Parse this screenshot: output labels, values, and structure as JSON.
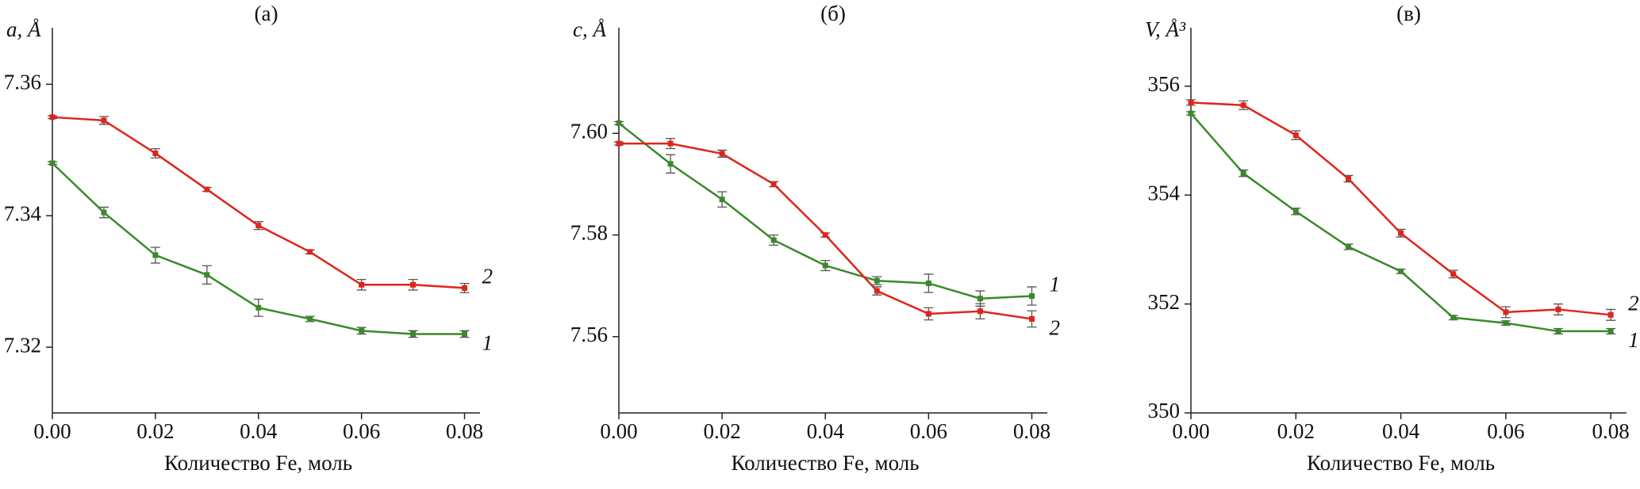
{
  "chart_data": [
    {
      "type": "line",
      "title": "(а)",
      "y_label": "a, Å",
      "x_label": "Количество Fe, моль",
      "x": [
        0,
        0.01,
        0.02,
        0.03,
        0.04,
        0.05,
        0.06,
        0.07,
        0.08
      ],
      "xlim": [
        0,
        0.083
      ],
      "xticks": [
        {
          "value": 0,
          "label": "0.00"
        },
        {
          "value": 0.02,
          "label": "0.02"
        },
        {
          "value": 0.04,
          "label": "0.04"
        },
        {
          "value": 0.06,
          "label": "0.06"
        },
        {
          "value": 0.08,
          "label": "0.08"
        }
      ],
      "ylim": [
        7.31,
        7.368
      ],
      "yticks": [
        7.32,
        7.34,
        7.36
      ],
      "series": [
        {
          "name": "2",
          "color": "#e0241b",
          "values": [
            7.355,
            7.3545,
            7.3495,
            7.344,
            7.3385,
            7.3345,
            7.3295,
            7.3295,
            7.329
          ],
          "errors": [
            0.0002,
            0.0006,
            0.0007,
            0.0003,
            0.0006,
            0.0003,
            0.0008,
            0.0008,
            0.0007
          ]
        },
        {
          "name": "1",
          "color": "#3a8a2a",
          "values": [
            7.348,
            7.3405,
            7.334,
            7.331,
            7.326,
            7.3243,
            7.3225,
            7.322,
            7.322
          ],
          "errors": [
            0.0002,
            0.0008,
            0.0012,
            0.0014,
            0.0013,
            0.0004,
            0.0005,
            0.0005,
            0.0005
          ]
        }
      ]
    },
    {
      "type": "line",
      "title": "(б)",
      "y_label": "c, Å",
      "x_label": "Количество Fe, моль",
      "x": [
        0,
        0.01,
        0.02,
        0.03,
        0.04,
        0.05,
        0.06,
        0.07,
        0.08
      ],
      "xlim": [
        0,
        0.083
      ],
      "xticks": [
        {
          "value": 0,
          "label": "0.00"
        },
        {
          "value": 0.02,
          "label": "0.02"
        },
        {
          "value": 0.04,
          "label": "0.04"
        },
        {
          "value": 0.06,
          "label": "0.06"
        },
        {
          "value": 0.08,
          "label": "0.08"
        }
      ],
      "ylim": [
        7.545,
        7.62
      ],
      "yticks": [
        7.56,
        7.58,
        {
          "value": 7.6,
          "label": "7.60"
        }
      ],
      "series": [
        {
          "name": "1",
          "color": "#3a8a2a",
          "values": [
            7.602,
            7.594,
            7.587,
            7.579,
            7.574,
            7.571,
            7.5705,
            7.5675,
            7.568
          ],
          "errors": [
            0.0003,
            0.0018,
            0.0015,
            0.001,
            0.001,
            0.0008,
            0.0018,
            0.0015,
            0.0018
          ]
        },
        {
          "name": "2",
          "color": "#e0241b",
          "values": [
            7.598,
            7.598,
            7.596,
            7.59,
            7.58,
            7.569,
            7.5645,
            7.565,
            7.5635
          ],
          "errors": [
            0.0003,
            0.001,
            0.0007,
            0.0005,
            0.0004,
            0.0008,
            0.0012,
            0.0015,
            0.0016
          ]
        }
      ]
    },
    {
      "type": "line",
      "title": "(в)",
      "y_label": "V, Å³",
      "x_label": "Количество Fe, моль",
      "x": [
        0,
        0.01,
        0.02,
        0.03,
        0.04,
        0.05,
        0.06,
        0.07,
        0.08
      ],
      "xlim": [
        0,
        0.083
      ],
      "xticks": [
        {
          "value": 0,
          "label": "0.00"
        },
        {
          "value": 0.02,
          "label": "0.02"
        },
        {
          "value": 0.04,
          "label": "0.04"
        },
        {
          "value": 0.06,
          "label": "0.06"
        },
        {
          "value": 0.08,
          "label": "0.08"
        }
      ],
      "ylim": [
        350,
        357
      ],
      "yticks": [
        350,
        352,
        354,
        356
      ],
      "series": [
        {
          "name": "2",
          "color": "#e0241b",
          "values": [
            355.7,
            355.65,
            355.1,
            354.3,
            353.3,
            352.55,
            351.85,
            351.9,
            351.8
          ],
          "errors": [
            0.05,
            0.08,
            0.08,
            0.06,
            0.07,
            0.07,
            0.1,
            0.1,
            0.1
          ]
        },
        {
          "name": "1",
          "color": "#3a8a2a",
          "values": [
            355.5,
            354.4,
            353.7,
            353.05,
            352.6,
            351.75,
            351.65,
            351.5,
            351.5
          ],
          "errors": [
            0.03,
            0.06,
            0.06,
            0.05,
            0.04,
            0.04,
            0.04,
            0.05,
            0.05
          ]
        }
      ]
    }
  ]
}
